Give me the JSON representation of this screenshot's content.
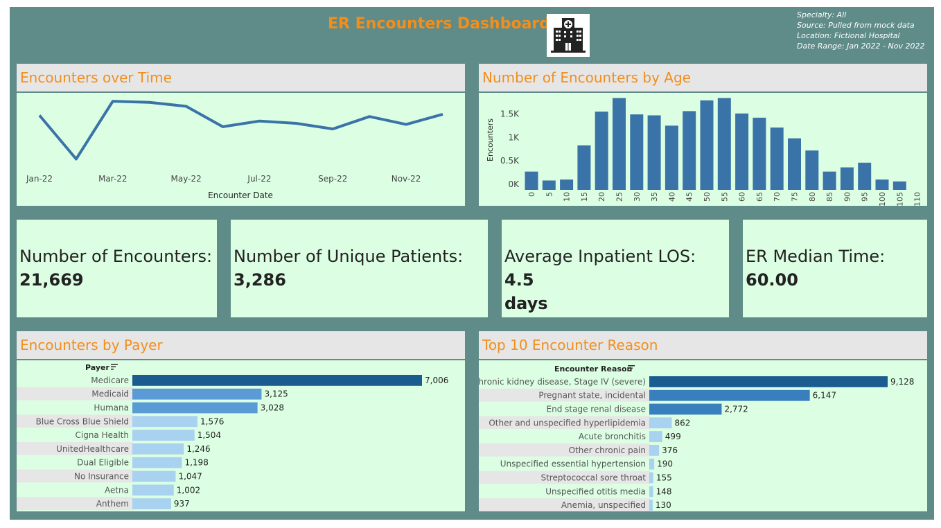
{
  "title": "ER Encounters Dashboard",
  "meta": [
    "Specialty: All",
    "Source: Pulled from mock data",
    "Location: Fictional Hospital",
    "Date Range: Jan 2022 - Nov 2022"
  ],
  "icon": "hospital-building-icon",
  "colors": {
    "background": "#5f8c88",
    "header_text": "#f28e1c",
    "panel": "#dcffe3",
    "bar": "#3a73a8",
    "dark_bar": "#1a5c90",
    "light_bar": "#a8d2ef"
  },
  "panels": {
    "time": "Encounters over Time",
    "age": "Number of Encounters by Age",
    "payer": "Encounters by Payer",
    "reason": "Top 10 Encounter Reason"
  },
  "kpis": [
    {
      "label": "Number of Encounters:",
      "value": "21,669"
    },
    {
      "label": "Number of Unique Patients:",
      "value": "3,286"
    },
    {
      "label": "Average Inpatient LOS:",
      "value": "4.5",
      "value2": "days"
    },
    {
      "label": "ER Median Time:",
      "value": "60.00"
    }
  ],
  "chart_data": [
    {
      "type": "line",
      "title": "Encounters over Time",
      "xlabel": "Encounter Date",
      "ylabel": "",
      "x": [
        "Jan-22",
        "Feb-22",
        "Mar-22",
        "Apr-22",
        "May-22",
        "Jun-22",
        "Jul-22",
        "Aug-22",
        "Sep-22",
        "Oct-22",
        "Nov-22",
        "Dec-22"
      ],
      "tick_labels": [
        "Jan-22",
        "Mar-22",
        "May-22",
        "Jul-22",
        "Sep-22",
        "Nov-22"
      ],
      "values": [
        1750,
        980,
        2000,
        1980,
        1910,
        1550,
        1650,
        1610,
        1510,
        1730,
        1590,
        1770
      ],
      "ylim": [
        900,
        2050
      ],
      "grid": false
    },
    {
      "type": "bar",
      "title": "Number of Encounters by Age",
      "xlabel": "",
      "ylabel": "Encounters",
      "categories": [
        "0",
        "5",
        "10",
        "15",
        "20",
        "25",
        "30",
        "35",
        "40",
        "45",
        "50",
        "55",
        "60",
        "65",
        "70",
        "75",
        "80",
        "85",
        "90",
        "95",
        "100",
        "105",
        "110"
      ],
      "values": [
        270,
        80,
        100,
        830,
        1550,
        1840,
        1490,
        1470,
        1250,
        1560,
        1790,
        1840,
        1510,
        1420,
        1210,
        980,
        720,
        270,
        360,
        460,
        100,
        60,
        0
      ],
      "yticks": [
        "0K",
        "0.5K",
        "1K",
        "1.5K"
      ],
      "ytick_values": [
        0,
        500,
        1000,
        1500
      ],
      "ylim": [
        -120,
        1950
      ]
    },
    {
      "type": "bar",
      "orientation": "horizontal",
      "title": "Encounters by Payer",
      "column_header": "Payer",
      "categories": [
        "Medicare",
        "Medicaid",
        "Humana",
        "Blue Cross Blue Shield",
        "Cigna Health",
        "UnitedHealthcare",
        "Dual Eligible",
        "No Insurance",
        "Aetna",
        "Anthem"
      ],
      "values": [
        7006,
        3125,
        3028,
        1576,
        1504,
        1246,
        1198,
        1047,
        1002,
        937
      ],
      "value_labels": [
        "7,006",
        "3,125",
        "3,028",
        "1,576",
        "1,504",
        "1,246",
        "1,198",
        "1,047",
        "1,002",
        "937"
      ]
    },
    {
      "type": "bar",
      "orientation": "horizontal",
      "title": "Top 10 Encounter Reason",
      "column_header": "Encounter Reason",
      "categories": [
        "Chronic kidney disease, Stage IV (severe)",
        "Pregnant state, incidental",
        "End stage renal disease",
        "Other and unspecified hyperlipidemia",
        "Acute bronchitis",
        "Other chronic pain",
        "Unspecified essential hypertension",
        "Streptococcal sore throat",
        "Unspecified otitis media",
        "Anemia, unspecified"
      ],
      "values": [
        9128,
        6147,
        2772,
        862,
        499,
        376,
        190,
        155,
        148,
        130
      ],
      "value_labels": [
        "9,128",
        "6,147",
        "2,772",
        "862",
        "499",
        "376",
        "190",
        "155",
        "148",
        "130"
      ]
    }
  ]
}
